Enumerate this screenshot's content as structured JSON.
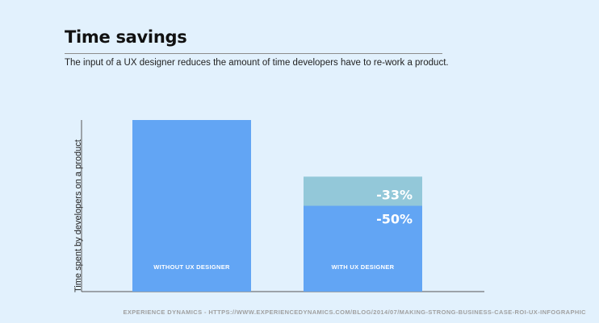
{
  "title": "Time savings",
  "subtitle": "The input of a UX designer reduces the amount of time developers have to re-work a product.",
  "footer": "EXPERIENCE DYNAMICS - HTTPS://WWW.EXPERIENCEDYNAMICS.COM/BLOG/2014/07/MAKING-STRONG-BUSINESS-CASE-ROI-UX-INFOGRAPHIC",
  "colors": {
    "background": "#e2f1fd",
    "bar": "#62a5f4",
    "reduction": "#93c8d9",
    "axis": "#555555"
  },
  "chart_data": {
    "type": "bar",
    "ylabel": "Time spent by developers on a product",
    "xlabel": "",
    "ylim": [
      0,
      100
    ],
    "categories": [
      "WITHOUT UX DESIGNER",
      "WITH UX DESIGNER"
    ],
    "values": [
      100,
      50
    ],
    "reduction_segment": {
      "category": "WITH UX DESIGNER",
      "from": 50,
      "to": 67
    },
    "annotations": [
      "-33%",
      "-50%"
    ],
    "grid": false
  }
}
